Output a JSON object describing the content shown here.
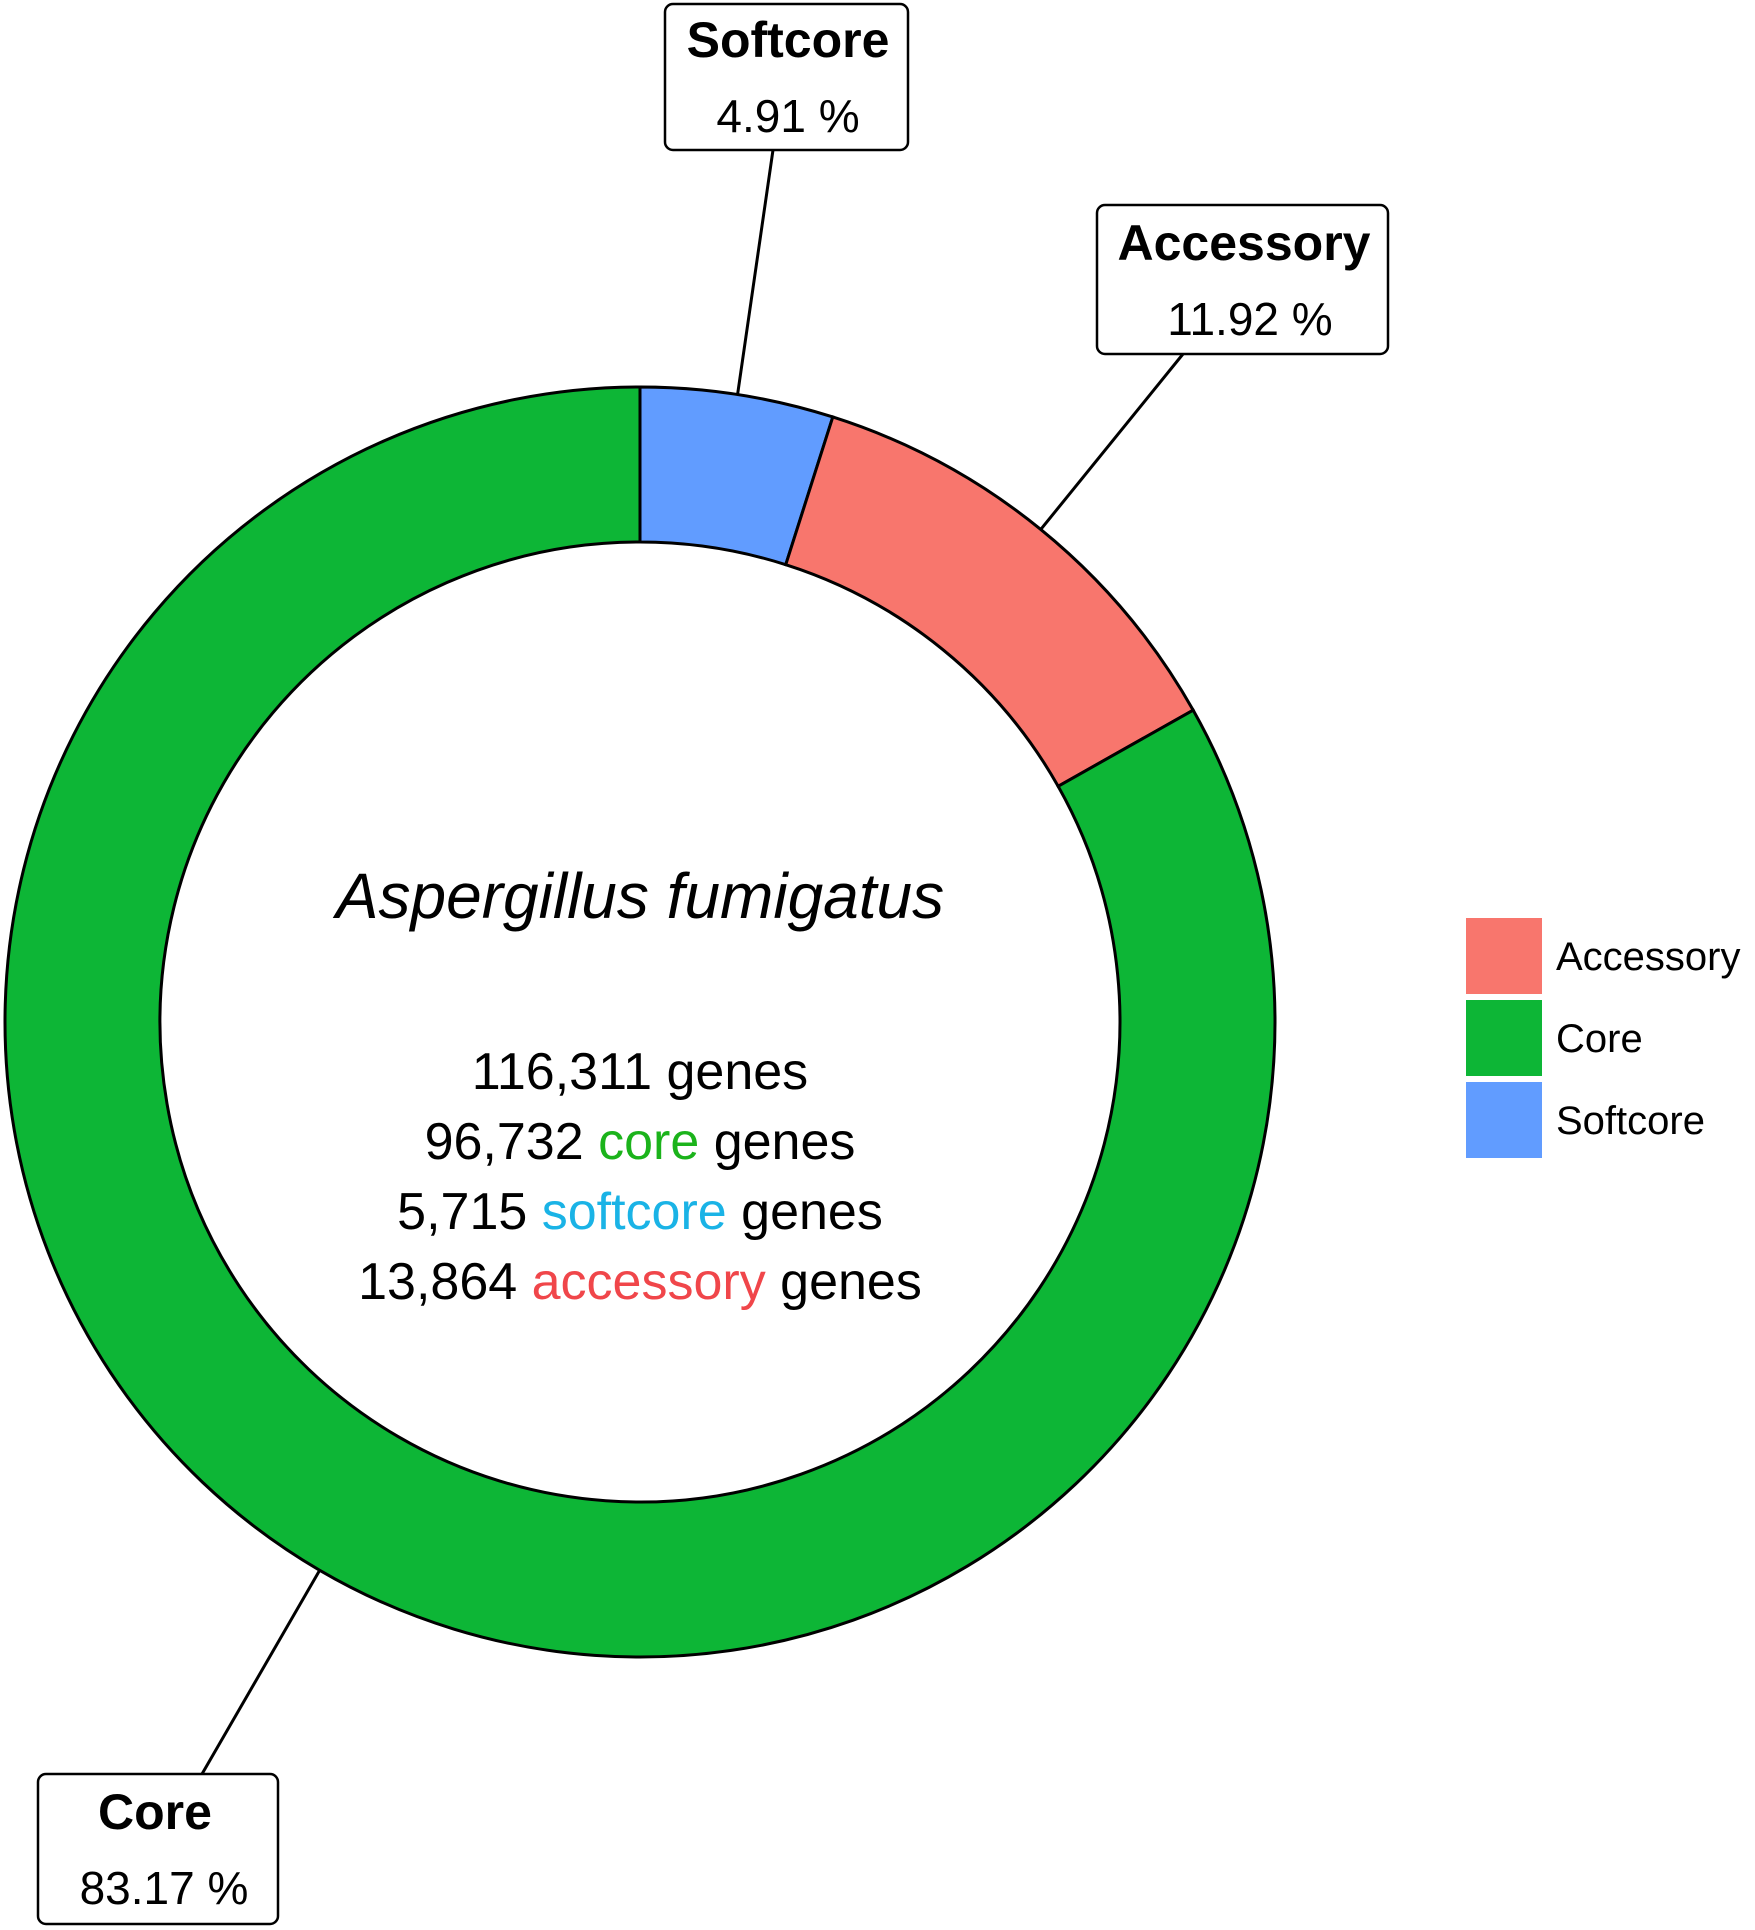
{
  "chart_data": {
    "type": "pie",
    "style": "donut",
    "center": {
      "title": "Aspergillus fumigatus",
      "lines": [
        {
          "count": "116,311",
          "label": "",
          "suffix": "genes",
          "color": "#000000"
        },
        {
          "count": "96,732",
          "label": "core",
          "suffix": "genes",
          "color": "#1bb31b"
        },
        {
          "count": "5,715",
          "label": "softcore",
          "suffix": "genes",
          "color": "#1ab3e6"
        },
        {
          "count": "13,864",
          "label": "accessory",
          "suffix": "genes",
          "color": "#f0464a"
        }
      ]
    },
    "slices": [
      {
        "name": "Softcore",
        "value": 4.91,
        "label": "4.91 %",
        "color": "#619cff"
      },
      {
        "name": "Accessory",
        "value": 11.92,
        "label": "11.92 %",
        "color": "#f8766d"
      },
      {
        "name": "Core",
        "value": 83.17,
        "label": "83.17 %",
        "color": "#0db636"
      }
    ],
    "legend": {
      "position": "right",
      "items": [
        {
          "label": "Accessory",
          "color": "#f8766d"
        },
        {
          "label": "Core",
          "color": "#0db636"
        },
        {
          "label": "Softcore",
          "color": "#619cff"
        }
      ]
    }
  }
}
